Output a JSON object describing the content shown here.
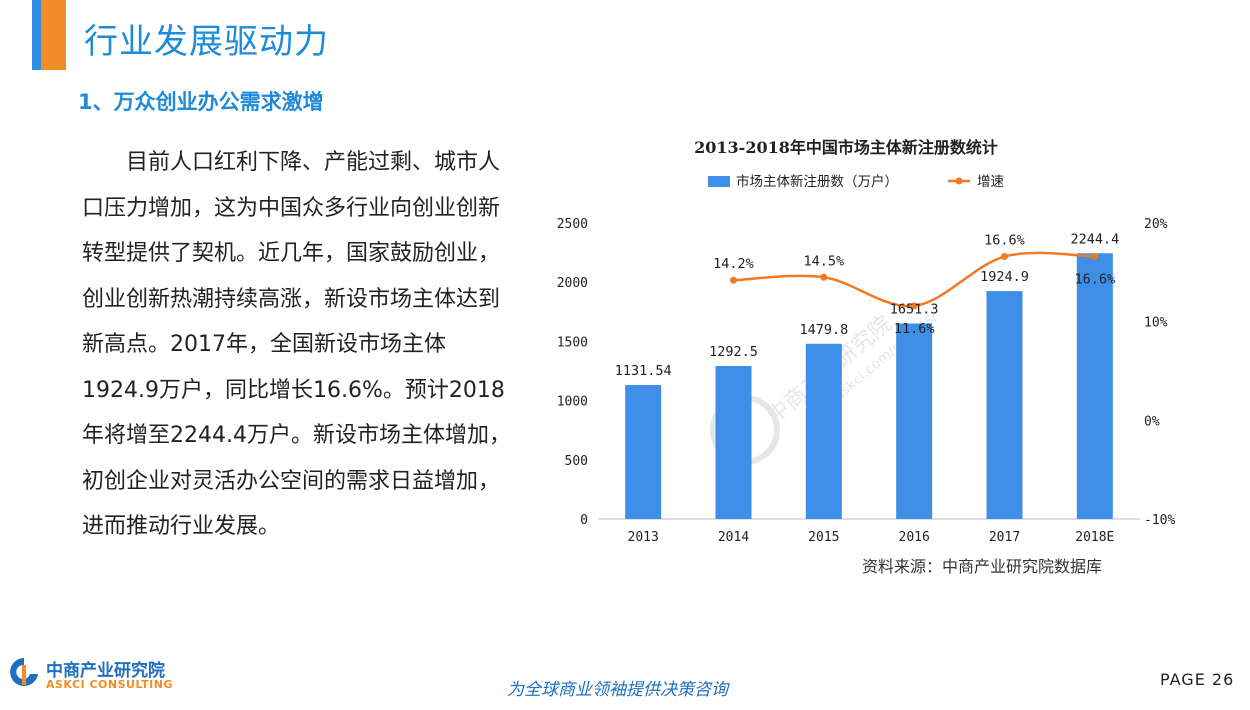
{
  "header": {
    "title": "行业发展驱动力"
  },
  "section": {
    "title": "1、万众创业办公需求激增"
  },
  "body": {
    "paragraph": "目前人口红利下降、产能过剩、城市人口压力增加，这为中国众多行业向创业创新转型提供了契机。近几年，国家鼓励创业，创业创新热潮持续高涨，新设市场主体达到新高点。2017年，全国新设市场主体1924.9万户，同比增长16.6%。预计2018年将增至2244.4万户。新设市场主体增加，初创企业对灵活办公空间的需求日益增加，进而推动行业发展。"
  },
  "chart_data": {
    "type": "bar",
    "title": "2013-2018年中国市场主体新注册数统计",
    "categories": [
      "2013",
      "2014",
      "2015",
      "2016",
      "2017",
      "2018E"
    ],
    "series": [
      {
        "name": "市场主体新注册数（万户）",
        "type": "bar",
        "axis": "left",
        "values": [
          1131.54,
          1292.5,
          1479.8,
          1651.3,
          1924.9,
          2244.4
        ],
        "labels": [
          "1131.54",
          "1292.5",
          "1479.8",
          "1651.3",
          "1924.9",
          "2244.4"
        ]
      },
      {
        "name": "增速",
        "type": "line",
        "axis": "right",
        "values": [
          null,
          14.2,
          14.5,
          11.6,
          16.6,
          16.6
        ],
        "labels": [
          "",
          "14.2%",
          "14.5%",
          "11.6%",
          "16.6%",
          "16.6%"
        ]
      }
    ],
    "ylim": [
      0,
      2500
    ],
    "yticks": [
      "0",
      "500",
      "1000",
      "1500",
      "2000",
      "2500"
    ],
    "y2lim": [
      -10,
      20
    ],
    "y2ticks": [
      "-10%",
      "0%",
      "10%",
      "20%"
    ],
    "legend": "top",
    "grid": false,
    "colors": {
      "bar": "#3f8fe8",
      "line": "#f27a22"
    }
  },
  "watermark": {
    "text": "中商产业研究院",
    "url": "www.askci.com/reports/"
  },
  "source": {
    "text": "资料来源：中商产业研究院数据库"
  },
  "footer": {
    "logo_cn": "中商产业研究院",
    "logo_en": "ASKCI CONSULTING",
    "slogan": "为全球商业领袖提供决策咨询",
    "page": "PAGE  26"
  }
}
